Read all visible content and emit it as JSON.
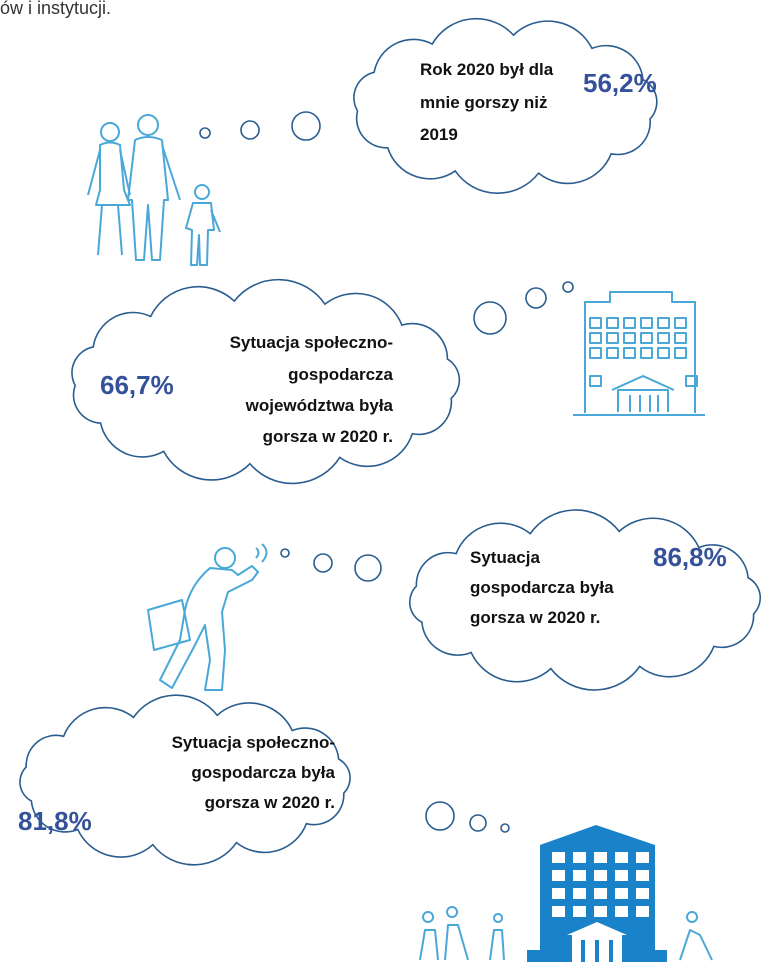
{
  "header": {
    "text": "ów i instytucji."
  },
  "bubbles": [
    {
      "lines": [
        "Rok 2020 był dla",
        "mnie gorszy niż",
        "2019"
      ],
      "value": "56,2%"
    },
    {
      "lines": [
        "Sytuacja społeczno-",
        "gospodarcza",
        "województwa była",
        "gorsza w 2020 r."
      ],
      "value": "66,7%"
    },
    {
      "lines": [
        "Sytuacja",
        "gospodarcza była",
        "gorsza w 2020 r."
      ],
      "value": "86,8%"
    },
    {
      "lines": [
        "Sytuacja społeczno-",
        "gospodarcza była",
        "gorsza w 2020 r."
      ],
      "value": "81,8%"
    }
  ]
}
